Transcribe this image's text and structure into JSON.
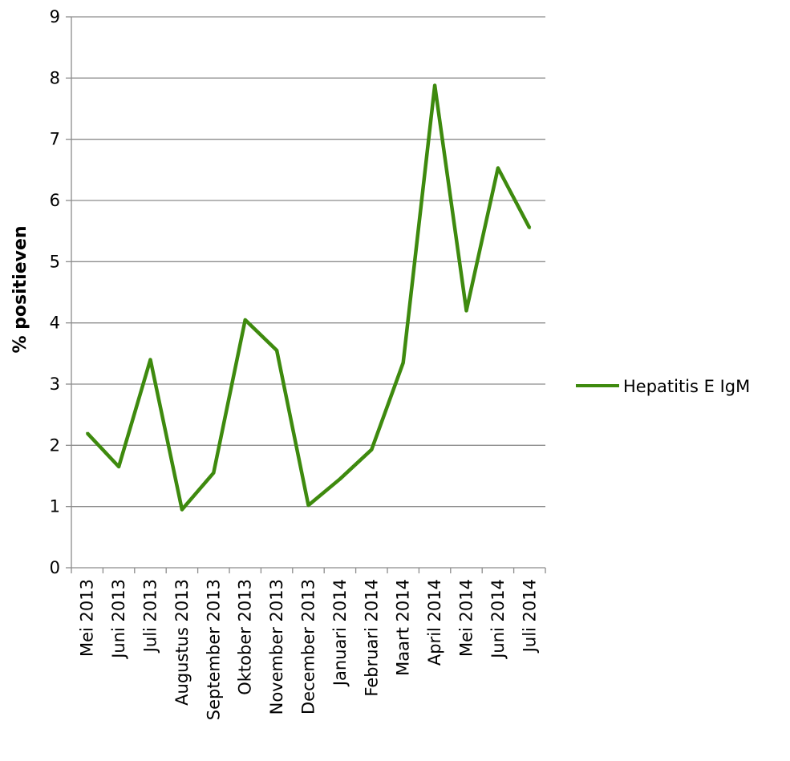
{
  "chart_data": {
    "type": "line",
    "title": "",
    "xlabel": "",
    "ylabel": "% positieven",
    "categories": [
      "Mei 2013",
      "Juni 2013",
      "Juli 2013",
      "Augustus 2013",
      "September 2013",
      "Oktober 2013",
      "November 2013",
      "December 2013",
      "Januari 2014",
      "Februari 2014",
      "Maart 2014",
      "April 2014",
      "Mei 2014",
      "Juni 2014",
      "Juli 2014"
    ],
    "y_ticks": [
      "0",
      "1",
      "2",
      "3",
      "4",
      "5",
      "6",
      "7",
      "8",
      "9"
    ],
    "ylim": [
      0,
      9
    ],
    "grid": "horizontal",
    "legend_position": "right",
    "series": [
      {
        "name": "Hepatitis E IgM",
        "color": "#3e8a0e",
        "values": [
          2.2,
          1.65,
          3.4,
          0.95,
          1.55,
          4.05,
          3.55,
          1.02,
          1.45,
          1.93,
          3.35,
          7.88,
          4.2,
          6.53,
          5.55
        ]
      }
    ]
  }
}
